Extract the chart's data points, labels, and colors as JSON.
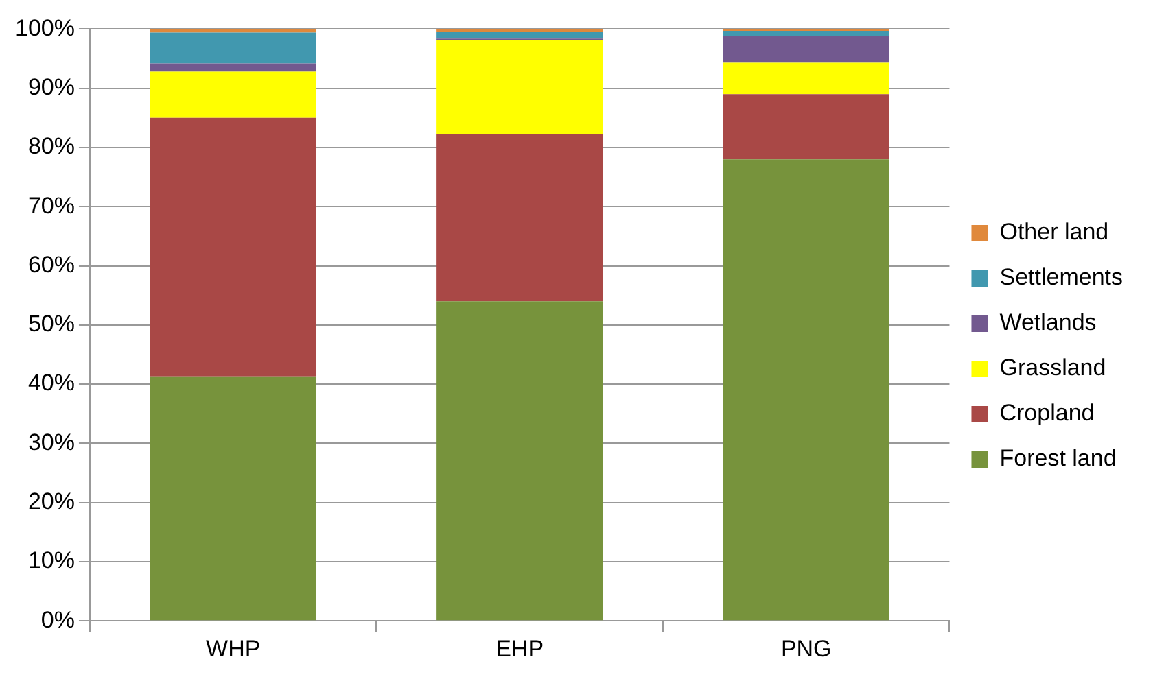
{
  "chart_data": {
    "type": "bar",
    "stacked": true,
    "categories": [
      "WHP",
      "EHP",
      "PNG"
    ],
    "series": [
      {
        "name": "Forest land",
        "color": "#77933c",
        "values": [
          41.3,
          54,
          78
        ]
      },
      {
        "name": "Cropland",
        "color": "#a94846",
        "values": [
          43.7,
          28.3,
          11
        ]
      },
      {
        "name": "Grassland",
        "color": "#ffff00",
        "values": [
          7.8,
          15.8,
          5.3
        ]
      },
      {
        "name": "Wetlands",
        "color": "#72598f",
        "values": [
          1.4,
          0.3,
          4.6
        ]
      },
      {
        "name": "Settlements",
        "color": "#4198af",
        "values": [
          5.2,
          1.1,
          0.8
        ]
      },
      {
        "name": "Other land",
        "color": "#e0893c",
        "values": [
          0.6,
          0.5,
          0.3
        ]
      }
    ],
    "ylim": [
      0,
      100
    ],
    "yticks": [
      {
        "value": 0,
        "label": "0%"
      },
      {
        "value": 10,
        "label": "10%"
      },
      {
        "value": 20,
        "label": "20%"
      },
      {
        "value": 30,
        "label": "30%"
      },
      {
        "value": 40,
        "label": "40%"
      },
      {
        "value": 50,
        "label": "50%"
      },
      {
        "value": 60,
        "label": "60%"
      },
      {
        "value": 70,
        "label": "70%"
      },
      {
        "value": 80,
        "label": "80%"
      },
      {
        "value": 90,
        "label": "90%"
      },
      {
        "value": 100,
        "label": "100%"
      }
    ],
    "grid": "y",
    "legend": "right"
  }
}
